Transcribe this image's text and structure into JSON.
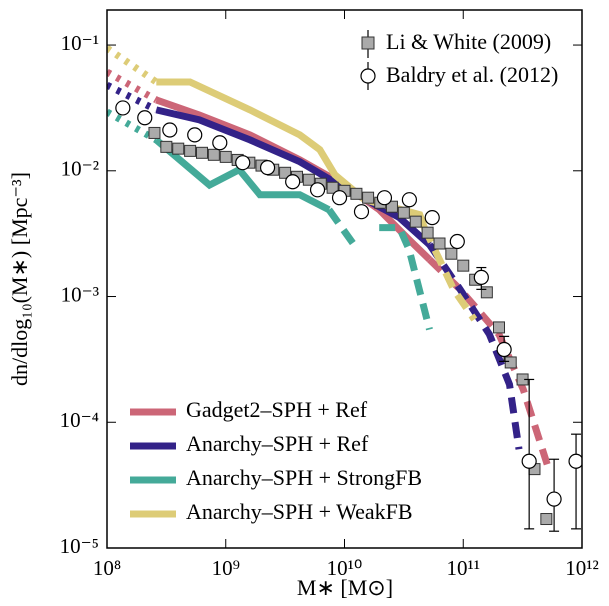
{
  "chart_data": {
    "type": "line",
    "xlabel": "M∗ [M⊙]",
    "ylabel": "dn/dlog₁₀(M∗) [Mpc⁻³]",
    "xscale": "log",
    "yscale": "log",
    "xlim": [
      100000000.0,
      1000000000000.0
    ],
    "ylim": [
      1e-05,
      0.19
    ],
    "xticks": [
      {
        "value": 100000000.0,
        "label": "10⁸"
      },
      {
        "value": 1000000000.0,
        "label": "10⁹"
      },
      {
        "value": 10000000000.0,
        "label": "10¹⁰"
      },
      {
        "value": 100000000000.0,
        "label": "10¹¹"
      },
      {
        "value": 1000000000000.0,
        "label": "10¹²"
      }
    ],
    "yticks": [
      {
        "value": 1e-05,
        "label": "10⁻⁵"
      },
      {
        "value": 0.0001,
        "label": "10⁻⁴"
      },
      {
        "value": 0.001,
        "label": "10⁻³"
      },
      {
        "value": 0.01,
        "label": "10⁻²"
      },
      {
        "value": 0.1,
        "label": "10⁻¹"
      }
    ],
    "series": [
      {
        "name": "Gadget2–SPH + Ref",
        "color": "#cc6677",
        "x_low": [
          100000000.0,
          260000000.0
        ],
        "values_low": [
          0.0611,
          0.0366
        ],
        "x": [
          260000000.0,
          600000000.0,
          1600000000.0,
          4200000000.0,
          10000000000.0,
          19600000000.0,
          35000000000.0,
          52000000000.0
        ],
        "values": [
          0.0366,
          0.0278,
          0.0193,
          0.0122,
          0.0077,
          0.0049,
          0.00283,
          0.00197
        ],
        "x_high": [
          52000000000.0,
          94000000000.0,
          200000000000.0,
          320000000000.0,
          510000000000.0
        ],
        "values_high": [
          0.00197,
          0.00114,
          0.0005,
          0.000183,
          4.6e-05
        ]
      },
      {
        "name": "Anarchy–SPH + Ref",
        "color": "#332288",
        "x_low": [
          100000000.0,
          260000000.0
        ],
        "values_low": [
          0.048,
          0.0305
        ],
        "x": [
          260000000.0,
          600000000.0,
          1600000000.0,
          4200000000.0,
          10000000000.0,
          29000000000.0,
          52000000000.0
        ],
        "values": [
          0.0305,
          0.0254,
          0.0176,
          0.0118,
          0.0073,
          0.00424,
          0.00259
        ],
        "x_high": [
          52000000000.0,
          94000000000.0,
          166000000000.0,
          245000000000.0,
          295000000000.0
        ],
        "values_high": [
          0.00259,
          0.00114,
          0.0005,
          0.0002,
          6.1e-05
        ]
      },
      {
        "name": "Anarchy–SPH + StrongFB",
        "color": "#44aa99",
        "x_low": [
          100000000.0,
          260000000.0
        ],
        "values_low": [
          0.0294,
          0.0176
        ],
        "x": [
          260000000.0,
          730000000.0,
          1300000000.0,
          1940000000.0,
          4200000000.0,
          7400000000.0
        ],
        "values": [
          0.0176,
          0.0077,
          0.0102,
          0.00645,
          0.00645,
          0.0049
        ],
        "x_high": [
          7400000000.0,
          12000000000.0,
          16000000000.0,
          19600000000.0,
          29000000000.0,
          35000000000.0,
          52000000000.0
        ],
        "values_high": [
          0.0049,
          0.00259,
          null,
          0.00353,
          0.00353,
          0.00236,
          0.000547
        ]
      },
      {
        "name": "Anarchy–SPH + WeakFB",
        "color": "#ddcc77",
        "x_low": [
          100000000.0,
          260000000.0
        ],
        "values_low": [
          0.0946,
          0.0508
        ],
        "x": [
          260000000.0,
          500000000.0,
          1600000000.0,
          4200000000.0,
          6200000000.0,
          8300000000.0,
          14800000000.0,
          43000000000.0,
          47000000000.0
        ],
        "values": [
          0.0508,
          0.0508,
          0.0305,
          0.0193,
          0.0147,
          0.0093,
          0.00589,
          0.00448,
          0.00353
        ],
        "x_high": [
          47000000000.0,
          83000000000.0,
          124000000000.0
        ],
        "values_high": [
          0.00353,
          0.00114,
          0.000656
        ]
      }
    ],
    "points": [
      {
        "name": "Li & White (2009)",
        "marker": "square",
        "color": "#aaaaaa",
        "x": [
          251000000.0,
          316000000.0,
          398000000.0,
          501000000.0,
          631000000.0,
          794000000.0,
          1000000000.0,
          1260000000.0,
          1580000000.0,
          2000000000.0,
          2510000000.0,
          3160000000.0,
          3980000000.0,
          5010000000.0,
          6310000000.0,
          7940000000.0,
          10000000000.0,
          12600000000.0,
          15800000000.0,
          20000000000.0,
          25100000000.0,
          31600000000.0,
          39800000000.0,
          50100000000.0,
          63100000000.0,
          79400000000.0,
          100000000000.0,
          126000000000.0,
          158000000000.0,
          200000000000.0,
          251000000000.0,
          316000000000.0,
          398000000000.0,
          501000000000.0
        ],
        "values": [
          0.02,
          0.0155,
          0.015,
          0.0144,
          0.0139,
          0.0134,
          0.0129,
          0.0122,
          0.0116,
          0.011,
          0.0102,
          0.00964,
          0.00896,
          0.00849,
          0.00789,
          0.00733,
          0.00693,
          0.00656,
          0.00611,
          0.00557,
          0.00518,
          0.00464,
          0.00394,
          0.00322,
          0.00264,
          0.00219,
          0.00176,
          0.00136,
          0.00108,
          0.000568,
          0.000299,
          0.000219,
          4.24e-05,
          1.7e-05
        ]
      },
      {
        "name": "Baldry et al. (2012)",
        "marker": "circle",
        "color": "#ffffff",
        "x": [
          136000000.0,
          208000000.0,
          338000000.0,
          548000000.0,
          891000000.0,
          1390000000.0,
          2250000000.0,
          3660000000.0,
          5930000000.0,
          9080000000.0,
          13900000000.0,
          21700000000.0,
          35200000000.0,
          54800000000.0,
          89100000000.0,
          142000000000.0,
          221000000000.0,
          359000000000.0,
          582000000000.0,
          891000000000.0
        ],
        "values": [
          0.0316,
          0.0264,
          0.0211,
          0.0193,
          0.0167,
          0.0116,
          0.0106,
          0.00818,
          0.00706,
          0.00611,
          0.00473,
          0.00611,
          0.00589,
          0.00424,
          0.00274,
          0.00142,
          0.000379,
          4.9e-05,
          2.45e-05,
          4.9e-05
        ],
        "err_low": [
          null,
          null,
          null,
          null,
          null,
          null,
          null,
          null,
          null,
          null,
          null,
          null,
          null,
          null,
          null,
          0.00114,
          0.000305,
          1.42e-05,
          1.36e-05,
          1.42e-05
        ],
        "err_high": [
          null,
          null,
          null,
          null,
          null,
          null,
          null,
          null,
          null,
          null,
          null,
          null,
          null,
          null,
          null,
          0.0017,
          0.000482,
          0.000219,
          5.08e-05,
          8.04e-05
        ]
      }
    ]
  }
}
